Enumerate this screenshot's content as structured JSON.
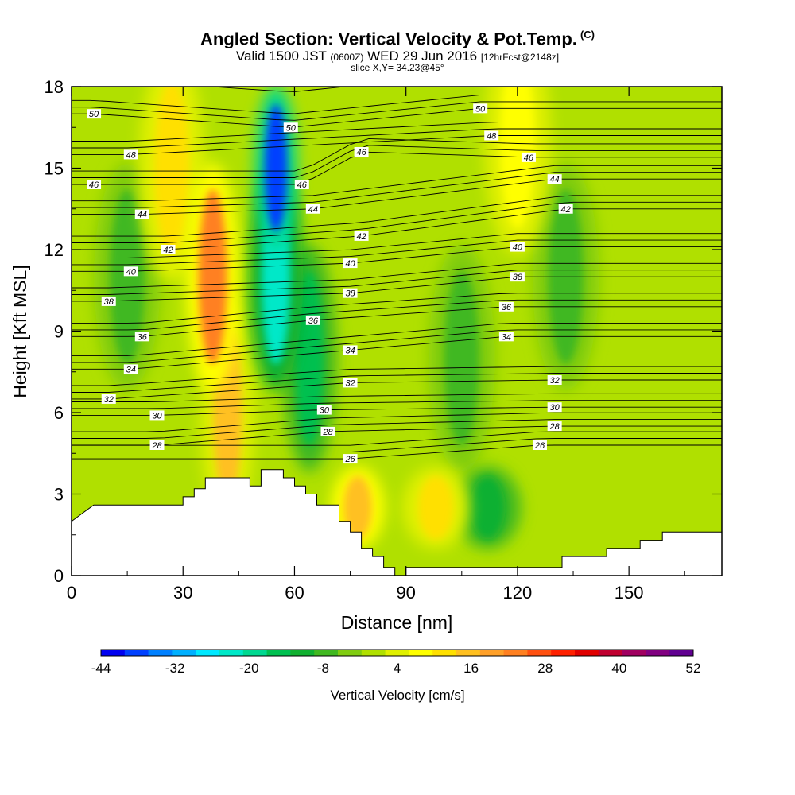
{
  "header": {
    "title": "Angled Section: Vertical Velocity & Pot.Temp.",
    "title_tag": "(C)",
    "valid_prefix": "Valid 1500 JST",
    "valid_utc": "(0600Z)",
    "valid_date": "WED 29 Jun 2016",
    "forecast": "[12hrFcst@2148z]",
    "slice": "slice X,Y= 34.23@45°"
  },
  "chart_data": {
    "type": "heatmap",
    "xlabel": "Distance [nm]",
    "ylabel": "Height [Kft MSL]",
    "xlim": [
      0,
      175
    ],
    "ylim": [
      0,
      18
    ],
    "x_ticks": [
      "0",
      "30",
      "60",
      "90",
      "120",
      "150"
    ],
    "y_ticks": [
      "0",
      "3",
      "6",
      "9",
      "12",
      "15",
      "18"
    ],
    "colorbar": {
      "label": "Vertical Velocity [cm/s]",
      "tick_labels": [
        "-44",
        "-32",
        "-20",
        "-8",
        "4",
        "16",
        "28",
        "40",
        "52"
      ],
      "levels": [
        -44,
        -40,
        -36,
        -32,
        -28,
        -24,
        -20,
        -16,
        -12,
        -8,
        -4,
        0,
        4,
        8,
        12,
        16,
        20,
        24,
        28,
        32,
        36,
        40,
        44,
        48,
        52
      ],
      "colors": [
        "#0000f0",
        "#0040ff",
        "#0080ff",
        "#00b0ff",
        "#00e8ff",
        "#00e8c8",
        "#00d890",
        "#00c050",
        "#10b030",
        "#40b820",
        "#80cc10",
        "#b0e000",
        "#e0f000",
        "#ffff00",
        "#ffe000",
        "#ffc020",
        "#ffa028",
        "#ff8020",
        "#ff5010",
        "#ff2000",
        "#e00000",
        "#c00030",
        "#a00060",
        "#800080",
        "#600090"
      ]
    },
    "series": [
      {
        "name": "Vertical Velocity",
        "units": "cm/s",
        "features": [
          {
            "x": 38,
            "z": 11,
            "value": 26
          },
          {
            "x": 27,
            "z": 15,
            "value": 12
          },
          {
            "x": 55,
            "z": 15,
            "value": -40
          },
          {
            "x": 55,
            "z": 11,
            "value": -24
          },
          {
            "x": 64,
            "z": 8,
            "value": -16
          },
          {
            "x": 15,
            "z": 11,
            "value": -8
          },
          {
            "x": 105,
            "z": 8,
            "value": -6
          },
          {
            "x": 133,
            "z": 11,
            "value": -8
          },
          {
            "x": 112,
            "z": 2.5,
            "value": -12
          },
          {
            "x": 98,
            "z": 2.5,
            "value": 14
          },
          {
            "x": 77,
            "z": 2.5,
            "value": 18
          },
          {
            "x": 42,
            "z": 6,
            "value": 16
          },
          {
            "x": 120,
            "z": 16,
            "value": 10
          }
        ]
      },
      {
        "name": "Pot.Temp.",
        "units": "C",
        "contour_labels": [
          {
            "value": "50",
            "x": 6,
            "z": 17
          },
          {
            "value": "48",
            "x": 16,
            "z": 15.5
          },
          {
            "value": "46",
            "x": 6,
            "z": 14.4
          },
          {
            "value": "44",
            "x": 19,
            "z": 13.3
          },
          {
            "value": "42",
            "x": 26,
            "z": 12
          },
          {
            "value": "40",
            "x": 16,
            "z": 11.2
          },
          {
            "value": "38",
            "x": 10,
            "z": 10.1
          },
          {
            "value": "36",
            "x": 19,
            "z": 8.8
          },
          {
            "value": "34",
            "x": 16,
            "z": 7.6
          },
          {
            "value": "32",
            "x": 10,
            "z": 6.5
          },
          {
            "value": "30",
            "x": 23,
            "z": 5.9
          },
          {
            "value": "28",
            "x": 23,
            "z": 4.8
          },
          {
            "value": "50",
            "x": 59,
            "z": 16.5
          },
          {
            "value": "46",
            "x": 78,
            "z": 15.6
          },
          {
            "value": "46",
            "x": 62,
            "z": 14.4
          },
          {
            "value": "44",
            "x": 65,
            "z": 13.5
          },
          {
            "value": "42",
            "x": 78,
            "z": 12.5
          },
          {
            "value": "40",
            "x": 75,
            "z": 11.5
          },
          {
            "value": "38",
            "x": 75,
            "z": 10.4
          },
          {
            "value": "36",
            "x": 65,
            "z": 9.4
          },
          {
            "value": "34",
            "x": 75,
            "z": 8.3
          },
          {
            "value": "32",
            "x": 75,
            "z": 7.1
          },
          {
            "value": "30",
            "x": 68,
            "z": 6.1
          },
          {
            "value": "28",
            "x": 69,
            "z": 5.3
          },
          {
            "value": "26",
            "x": 75,
            "z": 4.3
          },
          {
            "value": "50",
            "x": 110,
            "z": 17.2
          },
          {
            "value": "48",
            "x": 113,
            "z": 16.2
          },
          {
            "value": "46",
            "x": 123,
            "z": 15.4
          },
          {
            "value": "44",
            "x": 130,
            "z": 14.6
          },
          {
            "value": "42",
            "x": 133,
            "z": 13.5
          },
          {
            "value": "40",
            "x": 120,
            "z": 12.1
          },
          {
            "value": "38",
            "x": 120,
            "z": 11
          },
          {
            "value": "36",
            "x": 117,
            "z": 9.9
          },
          {
            "value": "34",
            "x": 117,
            "z": 8.8
          },
          {
            "value": "32",
            "x": 130,
            "z": 7.2
          },
          {
            "value": "30",
            "x": 130,
            "z": 6.2
          },
          {
            "value": "28",
            "x": 130,
            "z": 5.5
          },
          {
            "value": "26",
            "x": 126,
            "z": 4.8
          }
        ]
      }
    ],
    "terrain": [
      [
        0,
        2
      ],
      [
        3,
        2.3
      ],
      [
        6,
        2.6
      ],
      [
        30,
        2.6
      ],
      [
        30,
        2.9
      ],
      [
        33,
        2.9
      ],
      [
        33,
        3.2
      ],
      [
        36,
        3.2
      ],
      [
        36,
        3.6
      ],
      [
        48,
        3.6
      ],
      [
        48,
        3.3
      ],
      [
        51,
        3.3
      ],
      [
        51,
        3.9
      ],
      [
        57,
        3.9
      ],
      [
        57,
        3.6
      ],
      [
        60,
        3.6
      ],
      [
        60,
        3.3
      ],
      [
        63,
        3.3
      ],
      [
        63,
        3.0
      ],
      [
        66,
        3.0
      ],
      [
        66,
        2.6
      ],
      [
        72,
        2.6
      ],
      [
        72,
        2.0
      ],
      [
        75,
        2.0
      ],
      [
        75,
        1.6
      ],
      [
        78,
        1.6
      ],
      [
        78,
        1.0
      ],
      [
        81,
        1.0
      ],
      [
        81,
        0.7
      ],
      [
        84,
        0.7
      ],
      [
        84,
        0.3
      ],
      [
        87,
        0.3
      ],
      [
        87,
        0
      ],
      [
        90,
        0
      ],
      [
        90,
        0.3
      ],
      [
        132,
        0.3
      ],
      [
        132,
        0.7
      ],
      [
        144,
        0.7
      ],
      [
        144,
        1.0
      ],
      [
        153,
        1.0
      ],
      [
        153,
        1.3
      ],
      [
        159,
        1.3
      ],
      [
        159,
        1.6
      ],
      [
        175,
        1.6
      ]
    ]
  }
}
